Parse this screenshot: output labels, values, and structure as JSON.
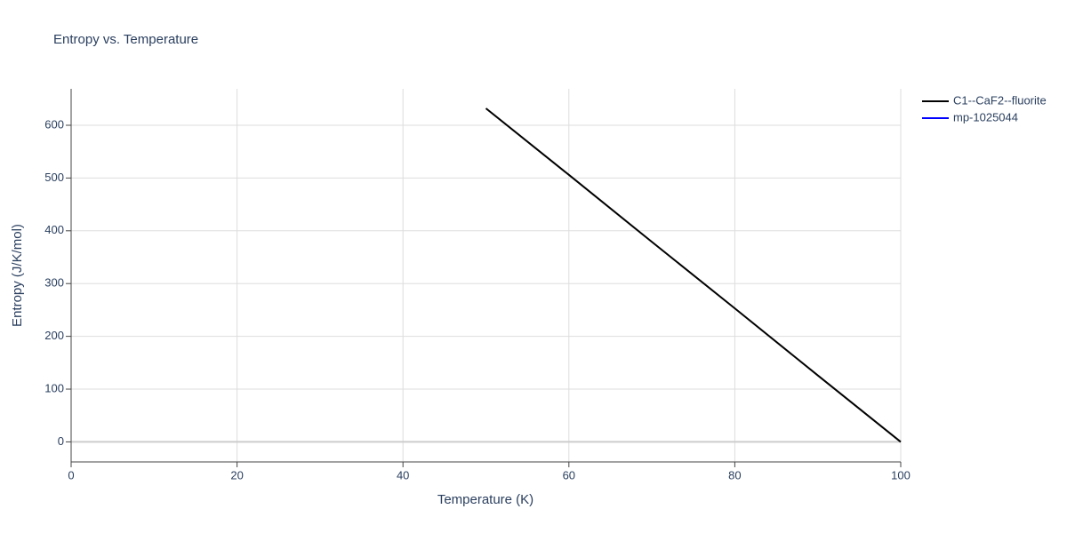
{
  "chart_data": {
    "type": "line",
    "title": "Entropy vs. Temperature",
    "x_label": "Temperature (K)",
    "y_label": "Entropy (J/K/mol)",
    "xlim": [
      0,
      100
    ],
    "xticks": [
      0,
      20,
      40,
      60,
      80,
      100
    ],
    "ylim": [
      -38,
      669
    ],
    "yticks": [
      0,
      100,
      200,
      300,
      400,
      500,
      600
    ],
    "grid": true,
    "legend": "right",
    "series": [
      {
        "name": "C1--CaF2--fluorite",
        "color": "#000000",
        "x": [
          50,
          60,
          70,
          80,
          90,
          100
        ],
        "values": [
          632,
          506,
          379,
          253,
          126,
          0
        ]
      },
      {
        "name": "mp-1025044",
        "color": "#0000ff",
        "x": [],
        "values": []
      }
    ]
  }
}
